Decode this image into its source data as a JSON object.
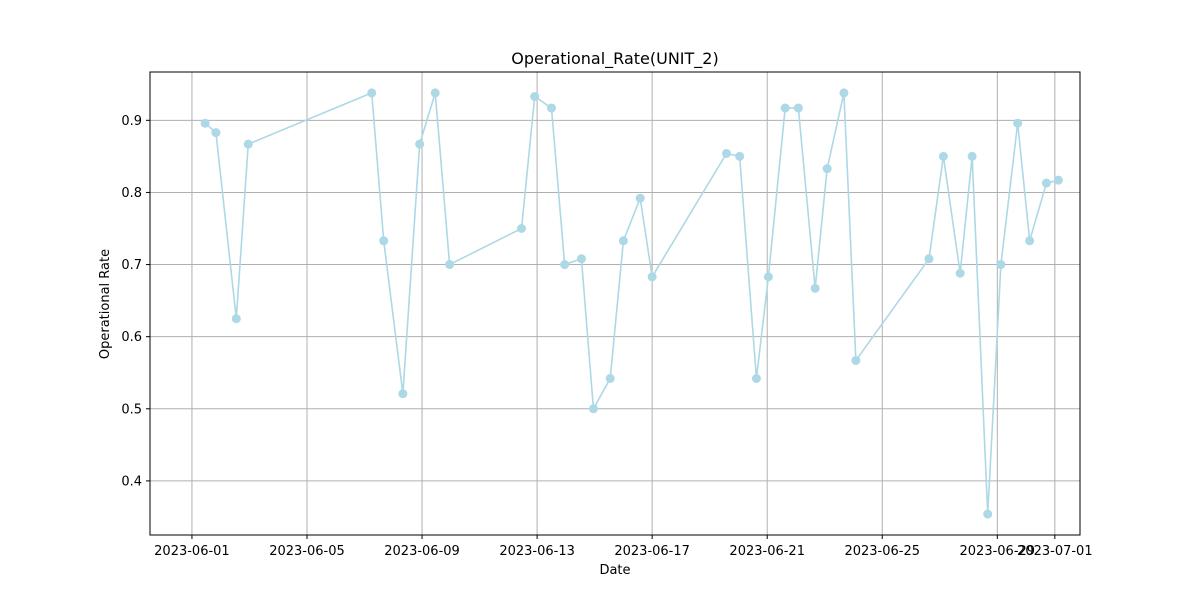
{
  "chart_data": {
    "type": "line",
    "title": "Operational_Rate(UNIT_2)",
    "xlabel": "Date",
    "ylabel": "Operational Rate",
    "grid": true,
    "marker": "circle",
    "line_color": "#add8e6",
    "xlim": [
      "2023-05-30T13:00",
      "2023-07-01T21:00"
    ],
    "ylim": [
      0.325,
      0.967
    ],
    "x_ticks": [
      "2023-06-01",
      "2023-06-05",
      "2023-06-09",
      "2023-06-13",
      "2023-06-17",
      "2023-06-21",
      "2023-06-25",
      "2023-06-29",
      "2023-07-01"
    ],
    "y_ticks": [
      "0.4",
      "0.5",
      "0.6",
      "0.7",
      "0.8",
      "0.9"
    ],
    "series": [
      {
        "x": [
          "2023-06-01T11:00",
          "2023-06-01T20:00",
          "2023-06-02T13:00",
          "2023-06-02T23:00",
          "2023-06-07T06:00",
          "2023-06-07T16:00",
          "2023-06-08T08:00",
          "2023-06-08T22:00",
          "2023-06-09T11:00",
          "2023-06-09T23:00",
          "2023-06-12T11:00",
          "2023-06-12T22:00",
          "2023-06-13T12:00",
          "2023-06-13T23:00",
          "2023-06-14T13:00",
          "2023-06-14T23:00",
          "2023-06-15T13:00",
          "2023-06-16T00:00",
          "2023-06-16T14:00",
          "2023-06-17T00:00",
          "2023-06-19T14:00",
          "2023-06-20T01:00",
          "2023-06-20T15:00",
          "2023-06-21T01:00",
          "2023-06-21T15:00",
          "2023-06-22T02:00",
          "2023-06-22T16:00",
          "2023-06-23T02:00",
          "2023-06-23T16:00",
          "2023-06-24T02:00",
          "2023-06-26T15:00",
          "2023-06-27T03:00",
          "2023-06-27T17:00",
          "2023-06-28T03:00",
          "2023-06-28T16:00",
          "2023-06-29T03:00",
          "2023-06-29T17:00",
          "2023-06-30T03:00",
          "2023-06-30T17:00",
          "2023-07-01T03:00"
        ],
        "values": [
          0.896,
          0.883,
          0.625,
          0.867,
          0.938,
          0.733,
          0.521,
          0.867,
          0.938,
          0.7,
          0.75,
          0.933,
          0.917,
          0.7,
          0.708,
          0.5,
          0.542,
          0.733,
          0.792,
          0.683,
          0.854,
          0.85,
          0.542,
          0.683,
          0.917,
          0.917,
          0.667,
          0.833,
          0.938,
          0.567,
          0.708,
          0.85,
          0.688,
          0.85,
          0.354,
          0.7,
          0.896,
          0.733,
          0.813,
          0.817
        ]
      }
    ]
  }
}
